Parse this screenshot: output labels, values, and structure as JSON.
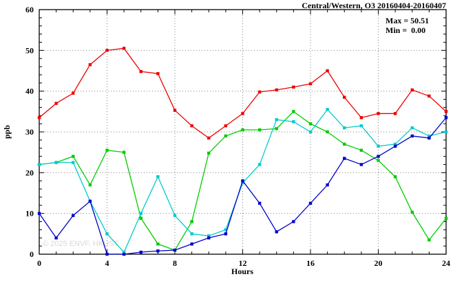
{
  "title": "Central/Western, O3 20160404-20160407",
  "annotation": {
    "max_label": "Max = 50.51",
    "min_label": "Min =  0.00"
  },
  "watermark": "© 2025 ENVF, HKUST",
  "chart_data": {
    "type": "line",
    "title": "Central/Western, O3 20160404-20160407",
    "xlabel": "Hours",
    "ylabel": "ppb",
    "xlim": [
      0,
      24
    ],
    "ylim": [
      0,
      60
    ],
    "xticks": [
      0,
      4,
      8,
      12,
      16,
      20,
      24
    ],
    "yticks": [
      0,
      10,
      20,
      30,
      40,
      50,
      60
    ],
    "grid": true,
    "legend": false,
    "marker": "square",
    "x": [
      0,
      1,
      2,
      3,
      4,
      5,
      6,
      7,
      8,
      9,
      10,
      11,
      12,
      13,
      14,
      15,
      16,
      17,
      18,
      19,
      20,
      21,
      22,
      23,
      24
    ],
    "series": [
      {
        "name": "red",
        "color": "#ee0000",
        "values": [
          33.5,
          37,
          39.5,
          46.5,
          50,
          50.51,
          44.8,
          44.3,
          35.3,
          31.5,
          28.5,
          31.5,
          34.5,
          39.8,
          40.3,
          41,
          41.8,
          45,
          38.5,
          33.5,
          34.5,
          34.5,
          40.3,
          38.8,
          35
        ]
      },
      {
        "name": "green",
        "color": "#00cc00",
        "values": [
          22,
          22.5,
          24,
          17,
          25.5,
          25,
          8.8,
          2.5,
          1,
          8,
          24.8,
          29,
          30.5,
          30.5,
          30.8,
          35,
          32,
          30,
          27,
          25.5,
          23,
          19,
          10.3,
          3.5,
          8.8
        ]
      },
      {
        "name": "cyan",
        "color": "#00cccc",
        "values": [
          22,
          22.5,
          22.5,
          13,
          5,
          0.5,
          10,
          19,
          9.5,
          5,
          4.5,
          6,
          17.5,
          22,
          33,
          32.5,
          30,
          35.5,
          31,
          31.5,
          26.5,
          27,
          31,
          29,
          30
        ]
      },
      {
        "name": "blue",
        "color": "#0000cc",
        "values": [
          10,
          4,
          9.5,
          13,
          0,
          0,
          0.5,
          0.8,
          1,
          2.5,
          4,
          5,
          18,
          12.5,
          5.5,
          8,
          12.5,
          17,
          23.5,
          22,
          24,
          26.5,
          29,
          28.5,
          33.5
        ]
      }
    ],
    "stats": {
      "max": 50.51,
      "min": 0.0
    }
  }
}
